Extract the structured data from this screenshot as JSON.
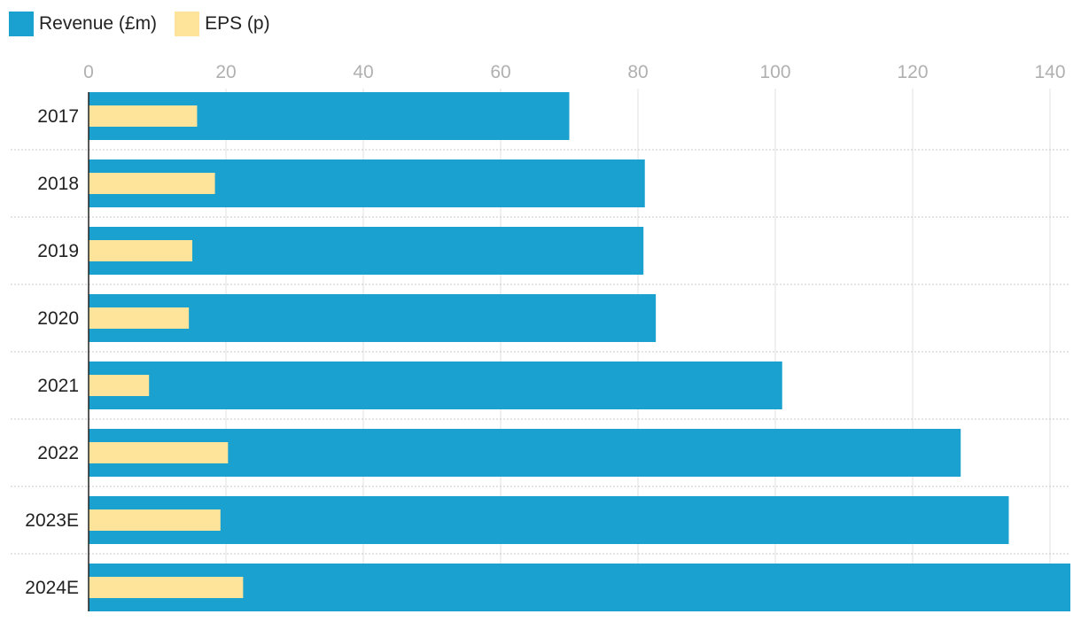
{
  "chart_data": {
    "type": "bar",
    "orientation": "horizontal",
    "categories": [
      "2017",
      "2018",
      "2019",
      "2020",
      "2021",
      "2022",
      "2023E",
      "2024E"
    ],
    "series": [
      {
        "name": "Revenue (£m)",
        "color": "#1aa1cf",
        "values": [
          70.0,
          81.0,
          80.8,
          82.6,
          101.0,
          127.0,
          134.0,
          143.0
        ]
      },
      {
        "name": "EPS (p)",
        "color": "#fde49a",
        "values": [
          15.8,
          18.4,
          15.1,
          14.6,
          8.8,
          20.3,
          19.2,
          22.5
        ]
      }
    ],
    "xlim": [
      0,
      143
    ],
    "xticks": [
      "0",
      "20",
      "40",
      "60",
      "80",
      "100",
      "120",
      "140"
    ],
    "grid": true,
    "legend_position": "top-left"
  }
}
